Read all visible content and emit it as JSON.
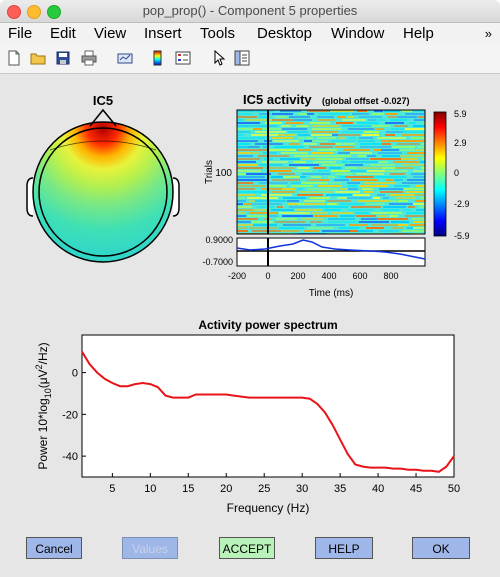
{
  "window": {
    "title": "pop_prop() - Component 5 properties",
    "traffic_lights": [
      "close",
      "minimize",
      "zoom"
    ]
  },
  "menubar": {
    "items": [
      "File",
      "Edit",
      "View",
      "Insert",
      "Tools",
      "Desktop",
      "Window",
      "Help"
    ],
    "overflow_icon": "double-arrow-icon"
  },
  "toolbar": {
    "icons": [
      "new-figure-icon",
      "open-file-icon",
      "save-icon",
      "print-icon",
      "link-plot-icon",
      "colorbar-icon",
      "legend-icon",
      "pointer-icon",
      "property-editor-icon"
    ]
  },
  "topomap": {
    "title": "IC5"
  },
  "erpimage": {
    "title": "IC5 activity",
    "subtitle": "(global offset -0.027)",
    "ylabel": "Trials",
    "ytick": "100",
    "colorbar_ticks": [
      "5.9",
      "2.9",
      "0",
      "-2.9",
      "-5.9"
    ],
    "erp_ticks": [
      "0.9000",
      "-0.7000"
    ],
    "xticks": [
      "-200",
      "0",
      "200",
      "400",
      "600",
      "800"
    ],
    "xlabel": "Time (ms)"
  },
  "chart_data": {
    "type": "line",
    "title": "Activity power spectrum",
    "xlabel": "Frequency (Hz)",
    "ylabel_prefix": "Power 10*log",
    "ylabel_sub": "10",
    "ylabel_suffix": "(μV",
    "ylabel_sup": "2",
    "ylabel_end": "/Hz)",
    "xlim": [
      1,
      50
    ],
    "ylim": [
      -50,
      18
    ],
    "xticks": [
      5,
      10,
      15,
      20,
      25,
      30,
      35,
      40,
      45,
      50
    ],
    "yticks": [
      0,
      -20,
      -40
    ],
    "line_color": "#e8141a",
    "x": [
      1,
      2,
      3,
      4,
      5,
      6,
      7,
      8,
      9,
      10,
      11,
      12,
      13,
      14,
      15,
      16,
      17,
      18,
      19,
      20,
      21,
      22,
      23,
      24,
      25,
      26,
      27,
      28,
      29,
      30,
      31,
      32,
      33,
      34,
      35,
      36,
      37,
      38,
      39,
      40,
      41,
      42,
      43,
      44,
      45,
      46,
      47,
      48,
      49,
      50
    ],
    "values": [
      10,
      4,
      0,
      -3,
      -5,
      -6.5,
      -6.5,
      -5.5,
      -5,
      -5.5,
      -7,
      -11,
      -12,
      -12,
      -12,
      -10.5,
      -10.5,
      -10.5,
      -10.5,
      -10.5,
      -11,
      -11.5,
      -12,
      -12,
      -12,
      -12,
      -12,
      -12,
      -12,
      -12,
      -12.5,
      -15,
      -19,
      -25,
      -32,
      -39,
      -44,
      -45,
      -45.5,
      -45.5,
      -45.5,
      -46,
      -46,
      -46.5,
      -46.5,
      -47,
      -47,
      -47.5,
      -45,
      -40
    ]
  },
  "buttons": {
    "cancel": "Cancel",
    "values": "Values",
    "accept": "ACCEPT",
    "help": "HELP",
    "ok": "OK"
  },
  "colors": {
    "button_blue": "#9fb6e9",
    "button_green": "#b9f2b9",
    "button_disabled": "#9fb6e9"
  }
}
